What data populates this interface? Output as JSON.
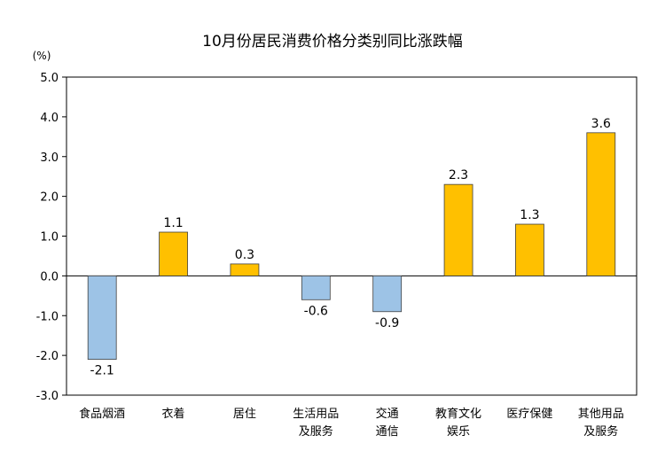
{
  "chart_data": {
    "type": "bar",
    "title": "10月份居民消费价格分类别同比涨跌幅",
    "unit_label": "(%)",
    "ylim": [
      -3.0,
      5.0
    ],
    "yticks": [
      "5.0",
      "4.0",
      "3.0",
      "2.0",
      "1.0",
      "0.0",
      "-1.0",
      "-2.0",
      "-3.0"
    ],
    "categories": [
      [
        "食品烟酒"
      ],
      [
        "衣着"
      ],
      [
        "居住"
      ],
      [
        "生活用品",
        "及服务"
      ],
      [
        "交通",
        "通信"
      ],
      [
        "教育文化",
        "娱乐"
      ],
      [
        "医疗保健"
      ],
      [
        "其他用品",
        "及服务"
      ]
    ],
    "values": [
      -2.1,
      1.1,
      0.3,
      -0.6,
      -0.9,
      2.3,
      1.3,
      3.6
    ],
    "value_labels": [
      "-2.1",
      "1.1",
      "0.3",
      "-0.6",
      "-0.9",
      "2.3",
      "1.3",
      "3.6"
    ],
    "colors": {
      "positive": "#FFC000",
      "negative": "#9DC3E6",
      "bar_stroke": "#404040",
      "axis": "#000000"
    },
    "grid": false,
    "legend": "none"
  }
}
